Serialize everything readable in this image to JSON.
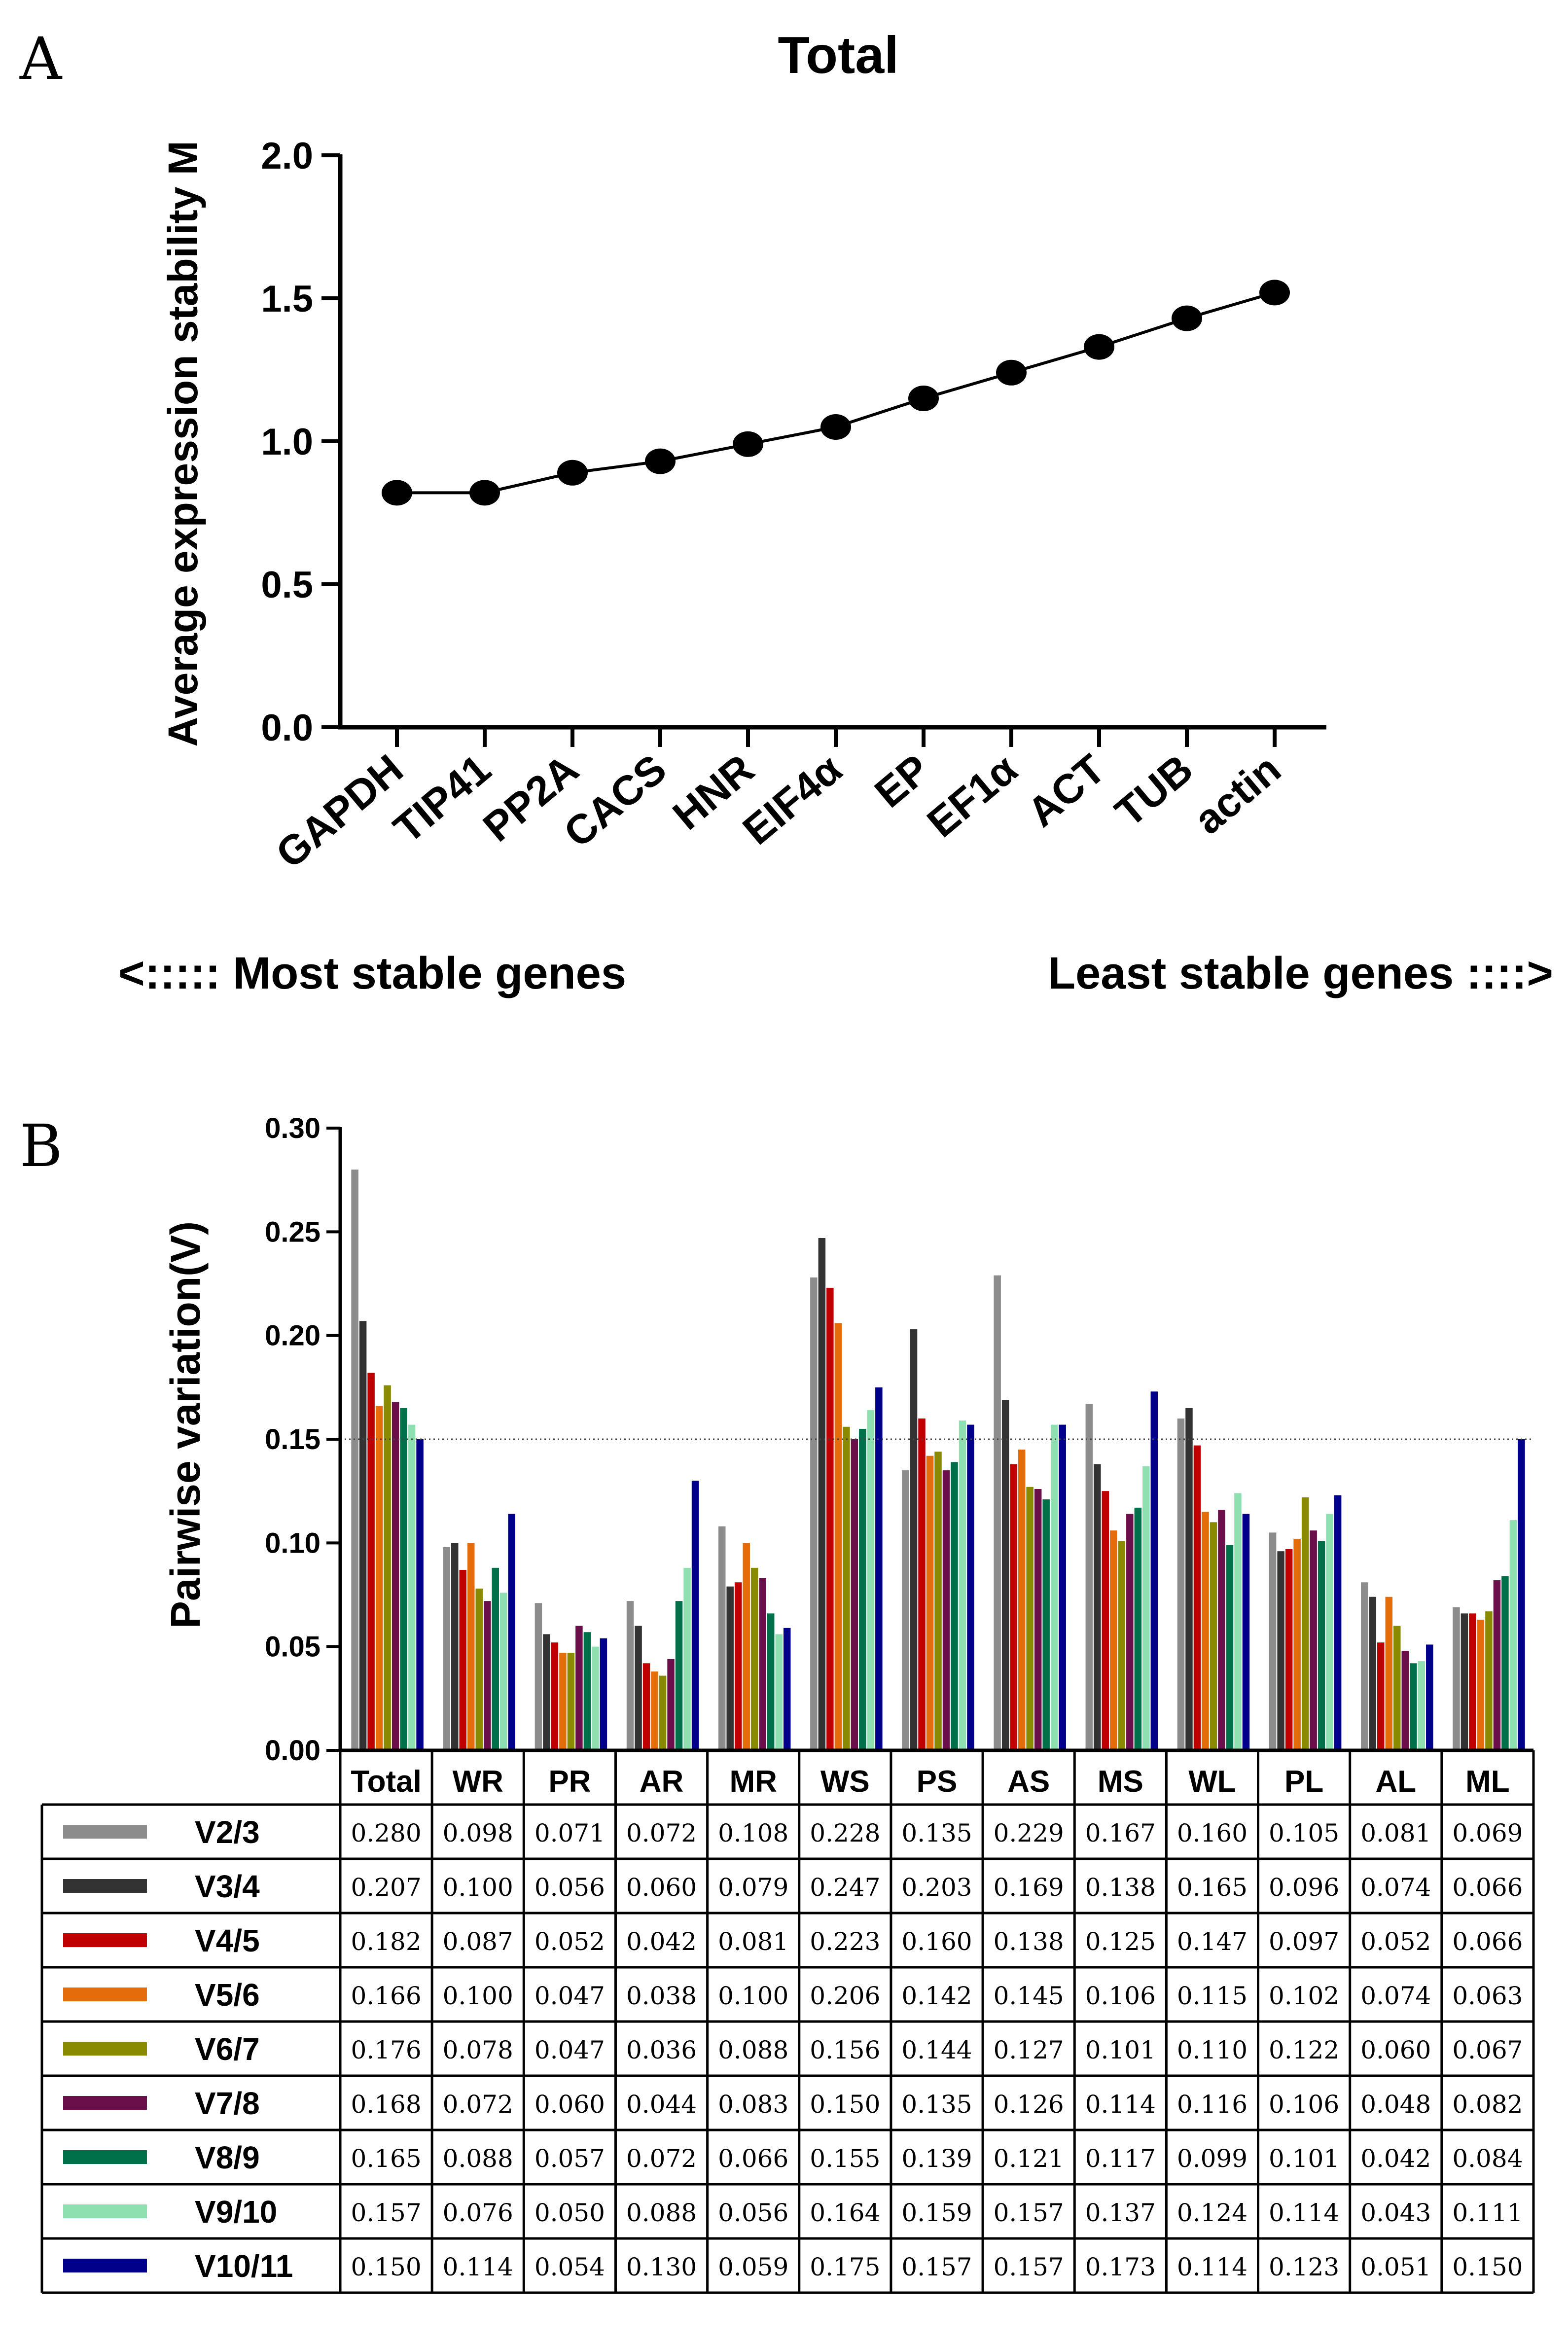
{
  "chart_data": [
    {
      "panel": "A",
      "type": "line",
      "title": "Total",
      "ylabel": "Average expression stability M",
      "xlabel": "",
      "ylim": [
        0,
        2.0
      ],
      "yticks": [
        "0.0",
        "0.5",
        "1.0",
        "1.5",
        "2.0"
      ],
      "categories": [
        "GAPDH",
        "TIP41",
        "PP2A",
        "CACS",
        "HNR",
        "EIF4α",
        "EP",
        "EF1α",
        "ACT",
        "TUB",
        "actin"
      ],
      "values": [
        0.82,
        0.82,
        0.89,
        0.93,
        0.99,
        1.05,
        1.15,
        1.24,
        1.33,
        1.43,
        1.52
      ],
      "annotations": {
        "left": "<:::::  Most stable genes",
        "right": "Least stable genes ::::>"
      }
    },
    {
      "panel": "B",
      "type": "bar",
      "ylabel": "Pairwise variation(V)",
      "ylim": [
        0,
        0.3
      ],
      "yticks": [
        "0.00",
        "0.05",
        "0.10",
        "0.15",
        "0.20",
        "0.25",
        "0.30"
      ],
      "threshold": 0.15,
      "categories": [
        "Total",
        "WR",
        "PR",
        "AR",
        "MR",
        "WS",
        "PS",
        "AS",
        "MS",
        "WL",
        "PL",
        "AL",
        "ML"
      ],
      "series": [
        {
          "name": "V2/3",
          "color": "#8c8c8c",
          "values": [
            0.28,
            0.098,
            0.071,
            0.072,
            0.108,
            0.228,
            0.135,
            0.229,
            0.167,
            0.16,
            0.105,
            0.081,
            0.069
          ],
          "labels": [
            "0.280",
            "0.098",
            "0.071",
            "0.072",
            "0.108",
            "0.228",
            "0.135",
            "0.229",
            "0.167",
            "0.160",
            "0.105",
            "0.081",
            "0.069"
          ]
        },
        {
          "name": "V3/4",
          "color": "#333333",
          "values": [
            0.207,
            0.1,
            0.056,
            0.06,
            0.079,
            0.247,
            0.203,
            0.169,
            0.138,
            0.165,
            0.096,
            0.074,
            0.066
          ],
          "labels": [
            "0.207",
            "0.100",
            "0.056",
            "0.060",
            "0.079",
            "0.247",
            "0.203",
            "0.169",
            "0.138",
            "0.165",
            "0.096",
            "0.074",
            "0.066"
          ]
        },
        {
          "name": "V4/5",
          "color": "#c00000",
          "values": [
            0.182,
            0.087,
            0.052,
            0.042,
            0.081,
            0.223,
            0.16,
            0.138,
            0.125,
            0.147,
            0.097,
            0.052,
            0.066
          ],
          "labels": [
            "0.182",
            "0.087",
            "0.052",
            "0.042",
            "0.081",
            "0.223",
            "0.160",
            "0.138",
            "0.125",
            "0.147",
            "0.097",
            "0.052",
            "0.066"
          ]
        },
        {
          "name": "V5/6",
          "color": "#e46c0a",
          "values": [
            0.166,
            0.1,
            0.047,
            0.038,
            0.1,
            0.206,
            0.142,
            0.145,
            0.106,
            0.115,
            0.102,
            0.074,
            0.063
          ],
          "labels": [
            "0.166",
            "0.100",
            "0.047",
            "0.038",
            "0.100",
            "0.206",
            "0.142",
            "0.145",
            "0.106",
            "0.115",
            "0.102",
            "0.074",
            "0.063"
          ]
        },
        {
          "name": "V6/7",
          "color": "#8a8a00",
          "values": [
            0.176,
            0.078,
            0.047,
            0.036,
            0.088,
            0.156,
            0.144,
            0.127,
            0.101,
            0.11,
            0.122,
            0.06,
            0.067
          ],
          "labels": [
            "0.176",
            "0.078",
            "0.047",
            "0.036",
            "0.088",
            "0.156",
            "0.144",
            "0.127",
            "0.101",
            "0.110",
            "0.122",
            "0.060",
            "0.067"
          ]
        },
        {
          "name": "V7/8",
          "color": "#6b0f4a",
          "values": [
            0.168,
            0.072,
            0.06,
            0.044,
            0.083,
            0.15,
            0.135,
            0.126,
            0.114,
            0.116,
            0.106,
            0.048,
            0.082
          ],
          "labels": [
            "0.168",
            "0.072",
            "0.060",
            "0.044",
            "0.083",
            "0.150",
            "0.135",
            "0.126",
            "0.114",
            "0.116",
            "0.106",
            "0.048",
            "0.082"
          ]
        },
        {
          "name": "V8/9",
          "color": "#00704a",
          "values": [
            0.165,
            0.088,
            0.057,
            0.072,
            0.066,
            0.155,
            0.139,
            0.121,
            0.117,
            0.099,
            0.101,
            0.042,
            0.084
          ],
          "labels": [
            "0.165",
            "0.088",
            "0.057",
            "0.072",
            "0.066",
            "0.155",
            "0.139",
            "0.121",
            "0.117",
            "0.099",
            "0.101",
            "0.042",
            "0.084"
          ]
        },
        {
          "name": "V9/10",
          "color": "#8fe0b0",
          "values": [
            0.157,
            0.076,
            0.05,
            0.088,
            0.056,
            0.164,
            0.159,
            0.157,
            0.137,
            0.124,
            0.114,
            0.043,
            0.111
          ],
          "labels": [
            "0.157",
            "0.076",
            "0.050",
            "0.088",
            "0.056",
            "0.164",
            "0.159",
            "0.157",
            "0.137",
            "0.124",
            "0.114",
            "0.043",
            "0.111"
          ]
        },
        {
          "name": "V10/11",
          "color": "#00008b",
          "values": [
            0.15,
            0.114,
            0.054,
            0.13,
            0.059,
            0.175,
            0.157,
            0.157,
            0.173,
            0.114,
            0.123,
            0.051,
            0.15
          ],
          "labels": [
            "0.150",
            "0.114",
            "0.054",
            "0.130",
            "0.059",
            "0.175",
            "0.157",
            "0.157",
            "0.173",
            "0.114",
            "0.123",
            "0.051",
            "0.150"
          ]
        }
      ]
    }
  ]
}
